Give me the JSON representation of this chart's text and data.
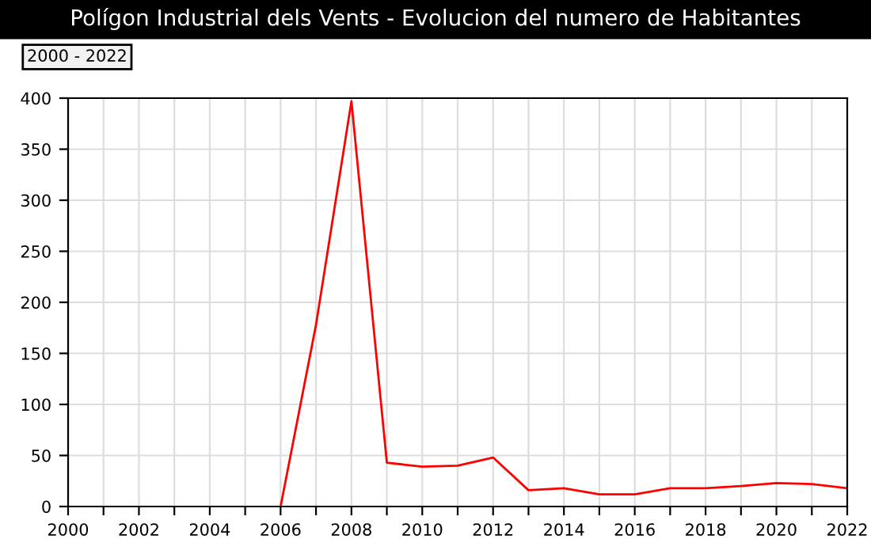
{
  "chart_data": {
    "type": "line",
    "title": "Polígon Industrial dels Vents - Evolucion del numero de Habitantes",
    "annotations": [
      "2000 - 2022"
    ],
    "x": [
      2006,
      2007,
      2008,
      2009,
      2010,
      2011,
      2012,
      2013,
      2014,
      2015,
      2016,
      2017,
      2018,
      2019,
      2020,
      2021,
      2022
    ],
    "series": [
      {
        "color": "#ff0000",
        "values": [
          0,
          178,
          397,
          43,
          39,
          40,
          48,
          16,
          18,
          12,
          12,
          18,
          18,
          20,
          23,
          22,
          18
        ]
      }
    ],
    "xlim": [
      2000,
      2022
    ],
    "xticks": [
      2000,
      {
        "value": 2001,
        "label": null
      },
      2002,
      {
        "value": 2003,
        "label": null
      },
      2004,
      {
        "value": 2005,
        "label": null
      },
      2006,
      {
        "value": 2007,
        "label": null
      },
      2008,
      {
        "value": 2009,
        "label": null
      },
      2010,
      {
        "value": 2011,
        "label": null
      },
      2012,
      {
        "value": 2013,
        "label": null
      },
      2014,
      {
        "value": 2015,
        "label": null
      },
      2016,
      {
        "value": 2017,
        "label": null
      },
      2018,
      {
        "value": 2019,
        "label": null
      },
      2020,
      {
        "value": 2021,
        "label": null
      },
      2022
    ],
    "ylim": [
      0,
      400
    ],
    "yticks": [
      0,
      50,
      100,
      150,
      200,
      250,
      300,
      350,
      400
    ],
    "grid": true,
    "legend": false,
    "marker": "none",
    "line_style": "solid"
  }
}
